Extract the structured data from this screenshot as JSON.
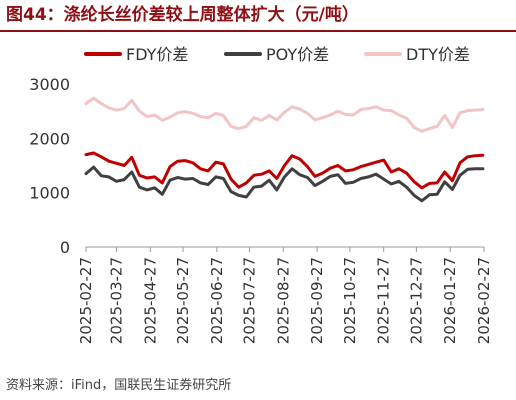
{
  "title": "图44：涤纶长丝价差较上周整体扩大（元/吨）",
  "source": "资料来源：iFind，国联民生证券研究所",
  "chart_data": {
    "type": "line",
    "ylim": [
      0,
      3000
    ],
    "yticks": [
      0,
      1000,
      2000,
      3000
    ],
    "xlim": [
      "2025-02-27",
      "2026-02-27"
    ],
    "xticks": [
      "2025-02-27",
      "2025-03-27",
      "2025-04-27",
      "2025-05-27",
      "2025-06-27",
      "2025-07-27",
      "2025-08-27",
      "2025-09-27",
      "2025-10-27",
      "2025-11-27",
      "2025-12-27",
      "2026-01-27",
      "2026-02-27"
    ],
    "legend_position": "top",
    "grid": false,
    "x": [
      "2025-02-27",
      "2025-03-06",
      "2025-03-13",
      "2025-03-20",
      "2025-03-27",
      "2025-04-03",
      "2025-04-10",
      "2025-04-17",
      "2025-04-24",
      "2025-05-01",
      "2025-05-08",
      "2025-05-15",
      "2025-05-22",
      "2025-05-29",
      "2025-06-05",
      "2025-06-12",
      "2025-06-19",
      "2025-06-26",
      "2025-07-03",
      "2025-07-10",
      "2025-07-17",
      "2025-07-24",
      "2025-07-31",
      "2025-08-07",
      "2025-08-14",
      "2025-08-21",
      "2025-08-28",
      "2025-09-04",
      "2025-09-11",
      "2025-09-18",
      "2025-09-25",
      "2025-10-02",
      "2025-10-09",
      "2025-10-16",
      "2025-10-23",
      "2025-10-30",
      "2025-11-06",
      "2025-11-13",
      "2025-11-20",
      "2025-11-27",
      "2025-12-04",
      "2025-12-11",
      "2025-12-18",
      "2025-12-25",
      "2026-01-01",
      "2026-01-08",
      "2026-01-15",
      "2026-01-22",
      "2026-01-29",
      "2026-02-05",
      "2026-02-12",
      "2026-02-19",
      "2026-02-26"
    ],
    "series": [
      {
        "name": "FDY价差",
        "color": "#c00000",
        "values": [
          1700,
          1730,
          1660,
          1580,
          1540,
          1500,
          1650,
          1320,
          1270,
          1290,
          1180,
          1480,
          1580,
          1590,
          1550,
          1440,
          1400,
          1560,
          1530,
          1250,
          1100,
          1180,
          1320,
          1340,
          1400,
          1260,
          1500,
          1680,
          1620,
          1480,
          1300,
          1360,
          1450,
          1500,
          1400,
          1420,
          1480,
          1520,
          1560,
          1600,
          1380,
          1440,
          1360,
          1200,
          1090,
          1170,
          1180,
          1380,
          1220,
          1550,
          1660,
          1680,
          1690
        ]
      },
      {
        "name": "POY价差",
        "color": "#404040",
        "values": [
          1350,
          1470,
          1310,
          1290,
          1210,
          1240,
          1380,
          1100,
          1050,
          1090,
          970,
          1230,
          1280,
          1250,
          1260,
          1180,
          1150,
          1290,
          1260,
          1020,
          950,
          920,
          1100,
          1120,
          1230,
          1050,
          1290,
          1440,
          1330,
          1280,
          1130,
          1210,
          1300,
          1330,
          1170,
          1190,
          1260,
          1290,
          1340,
          1250,
          1160,
          1210,
          1100,
          950,
          850,
          960,
          970,
          1200,
          1060,
          1320,
          1430,
          1440,
          1440
        ]
      },
      {
        "name": "DTY价差",
        "color": "#f2c4c4",
        "values": [
          2640,
          2740,
          2640,
          2560,
          2520,
          2550,
          2700,
          2500,
          2400,
          2430,
          2330,
          2390,
          2470,
          2490,
          2460,
          2400,
          2380,
          2460,
          2420,
          2220,
          2180,
          2220,
          2380,
          2330,
          2420,
          2340,
          2480,
          2580,
          2540,
          2460,
          2340,
          2380,
          2430,
          2500,
          2440,
          2430,
          2530,
          2550,
          2580,
          2520,
          2510,
          2430,
          2370,
          2200,
          2130,
          2180,
          2220,
          2420,
          2200,
          2470,
          2510,
          2520,
          2530
        ]
      }
    ]
  }
}
